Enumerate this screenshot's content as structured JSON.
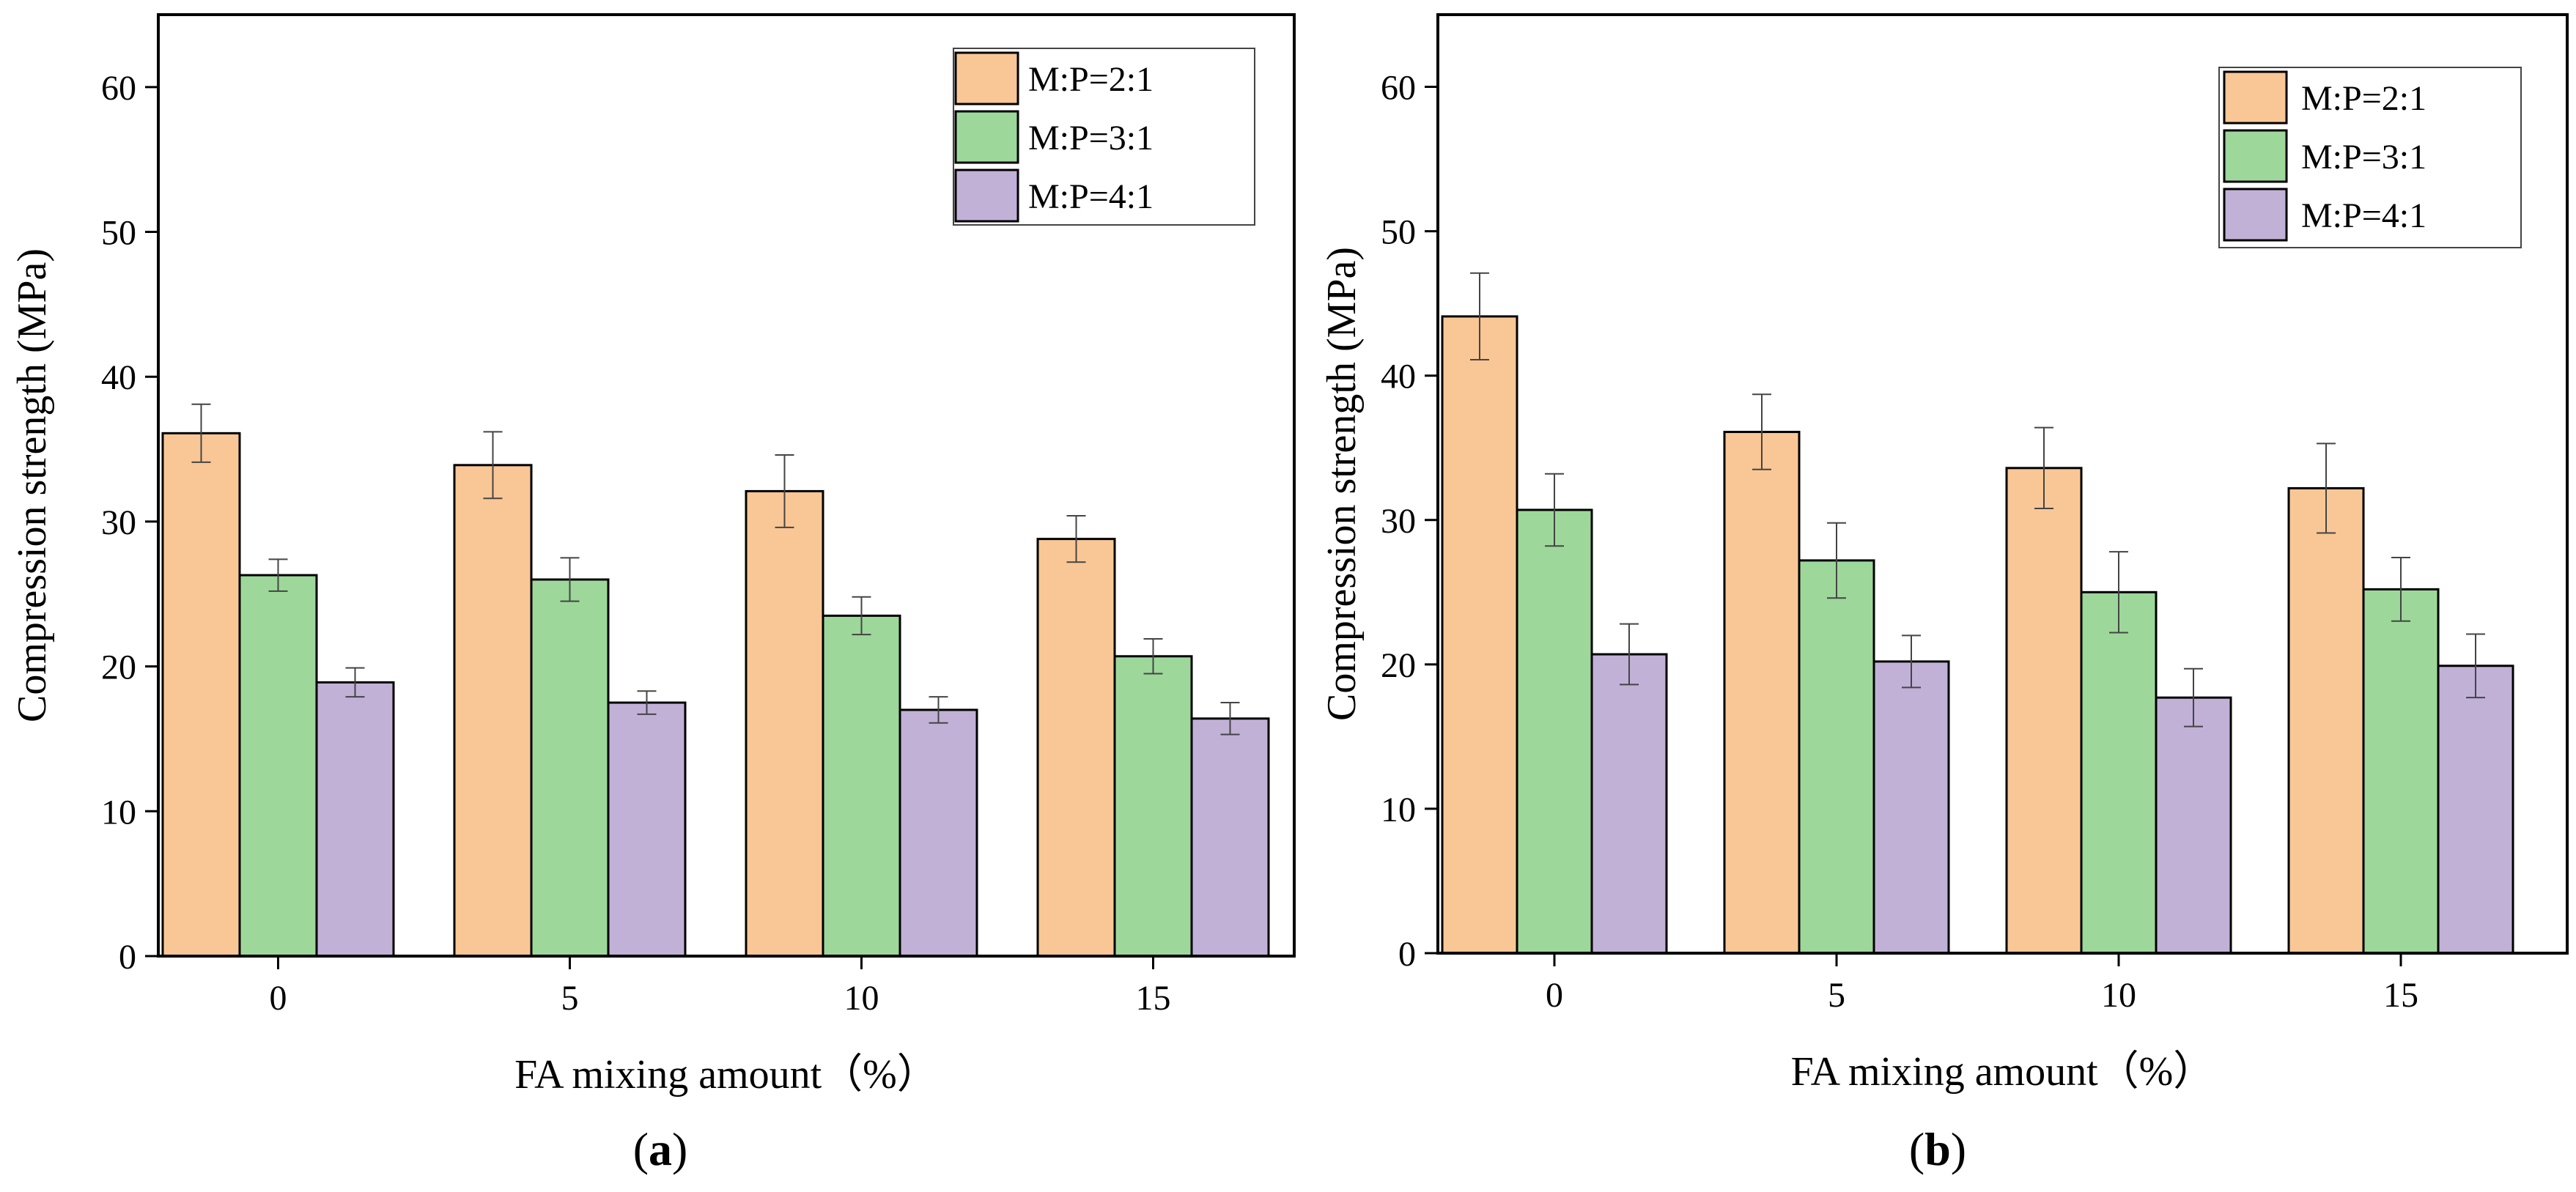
{
  "chart_data": [
    {
      "id": "a",
      "type": "bar",
      "panel_label_open": "(",
      "panel_label_letter": "a",
      "panel_label_close": ")",
      "xlabel": "FA mixing amount（%）",
      "ylabel": "Compression strength (MPa)",
      "ylim": [
        0,
        65
      ],
      "yticks": [
        0,
        10,
        20,
        30,
        40,
        50,
        60
      ],
      "categories": [
        "0",
        "5",
        "10",
        "15"
      ],
      "legend_position": "top-right",
      "series": [
        {
          "name": "M:P=2:1",
          "color": "#F9C795",
          "values": [
            36.1,
            33.9,
            32.1,
            28.8
          ],
          "errors": [
            2.0,
            2.3,
            2.5,
            1.6
          ]
        },
        {
          "name": "M:P=3:1",
          "color": "#9DD89A",
          "values": [
            26.3,
            26.0,
            23.5,
            20.7
          ],
          "errors": [
            1.1,
            1.5,
            1.3,
            1.2
          ]
        },
        {
          "name": "M:P=4:1",
          "color": "#C1B1D7",
          "values": [
            18.9,
            17.5,
            17.0,
            16.4
          ],
          "errors": [
            1.0,
            0.8,
            0.9,
            1.1
          ]
        }
      ]
    },
    {
      "id": "b",
      "type": "bar",
      "panel_label_open": "(",
      "panel_label_letter": "b",
      "panel_label_close": ")",
      "xlabel": "FA mixing amount（%）",
      "ylabel": "Compression strength (MPa)",
      "ylim": [
        0,
        65
      ],
      "yticks": [
        0,
        10,
        20,
        30,
        40,
        50,
        60
      ],
      "categories": [
        "0",
        "5",
        "10",
        "15"
      ],
      "legend_position": "top-right",
      "series": [
        {
          "name": "M:P=2:1",
          "color": "#F9C795",
          "values": [
            44.1,
            36.1,
            33.6,
            32.2
          ],
          "errors": [
            3.0,
            2.6,
            2.8,
            3.1
          ]
        },
        {
          "name": "M:P=3:1",
          "color": "#9DD89A",
          "values": [
            30.7,
            27.2,
            25.0,
            25.2
          ],
          "errors": [
            2.5,
            2.6,
            2.8,
            2.2
          ]
        },
        {
          "name": "M:P=4:1",
          "color": "#C1B1D7",
          "values": [
            20.7,
            20.2,
            17.7,
            19.9
          ],
          "errors": [
            2.1,
            1.8,
            2.0,
            2.2
          ]
        }
      ]
    }
  ]
}
